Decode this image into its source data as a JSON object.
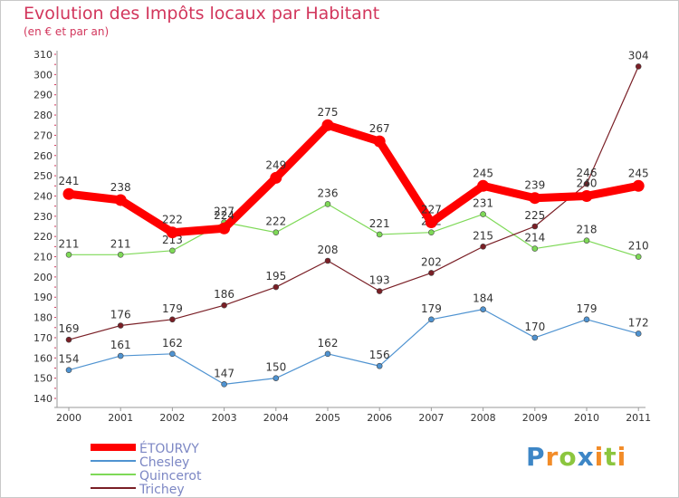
{
  "chart_data": {
    "type": "line",
    "title": "Evolution des Impôts locaux par Habitant",
    "subtitle": "(en € et par an)",
    "xlabel": "",
    "ylabel": "",
    "x": [
      "2000",
      "2001",
      "2002",
      "2003",
      "2004",
      "2005",
      "2006",
      "2007",
      "2008",
      "2009",
      "2010",
      "2011"
    ],
    "ylim": [
      140,
      310
    ],
    "yticks": [
      140,
      150,
      160,
      170,
      180,
      190,
      200,
      210,
      220,
      230,
      240,
      250,
      260,
      270,
      280,
      290,
      300,
      310
    ],
    "grid": false,
    "legend_position": "bottom-left",
    "series": [
      {
        "name": "ÉTOURVY",
        "color": "#ff0000",
        "values": [
          241,
          238,
          222,
          224,
          249,
          275,
          267,
          227,
          245,
          239,
          240,
          245
        ]
      },
      {
        "name": "Chesley",
        "color": "#4f93d1",
        "values": [
          154,
          161,
          162,
          147,
          150,
          162,
          156,
          179,
          184,
          170,
          179,
          172
        ]
      },
      {
        "name": "Quincerot",
        "color": "#7ed957",
        "values": [
          211,
          211,
          213,
          227,
          222,
          236,
          221,
          222,
          231,
          214,
          218,
          210
        ]
      },
      {
        "name": "Trichey",
        "color": "#7a1f26",
        "values": [
          169,
          176,
          179,
          186,
          195,
          208,
          193,
          202,
          215,
          225,
          246,
          304
        ]
      }
    ]
  },
  "logo": {
    "letters": [
      "P",
      "r",
      "o",
      "x",
      "i",
      "t",
      "i"
    ],
    "colors": [
      "#3d86c6",
      "#f28c28",
      "#8cc63f",
      "#3d86c6",
      "#f28c28",
      "#8cc63f",
      "#f28c28"
    ]
  }
}
